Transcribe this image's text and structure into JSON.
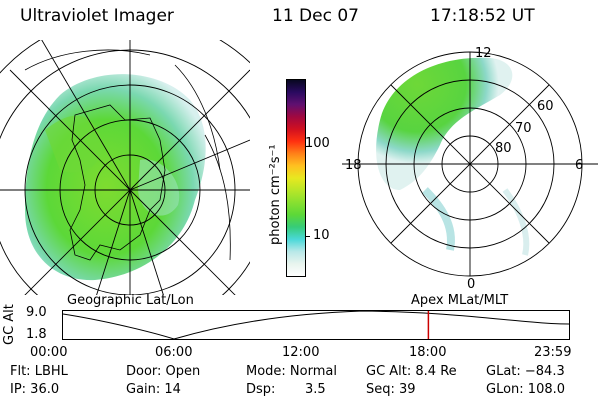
{
  "header": {
    "title": "Ultraviolet Imager",
    "date": "11 Dec 07",
    "time": "17:18:52 UT"
  },
  "left_panel": {
    "label": "Geographic Lat/Lon"
  },
  "right_panel": {
    "label": "Apex MLat/MLT",
    "mlt_labels": {
      "top": "12",
      "left": "18",
      "right": "6",
      "bottom": "0"
    },
    "lat_labels": [
      "60",
      "70",
      "80"
    ]
  },
  "colorbar": {
    "unit_label": "photon cm⁻²s⁻¹",
    "ticks": [
      {
        "label": "100",
        "value": 100
      },
      {
        "label": "10",
        "value": 10
      }
    ],
    "colors": [
      "#ffffff",
      "#e8f4ee",
      "#b8e8e8",
      "#4ad8d8",
      "#36cc78",
      "#5cd838",
      "#88e030",
      "#b8e628",
      "#e8e820",
      "#ffc020",
      "#ff8018",
      "#ff3010",
      "#d01020",
      "#a00840",
      "#601070",
      "#2a0a60",
      "#080820"
    ]
  },
  "altitude_plot": {
    "ylabel": "GC Alt",
    "y_ticks": [
      "9.0",
      "1.8"
    ],
    "y_range": [
      1.8,
      9.0
    ],
    "x_ticks": [
      "00:00",
      "06:00",
      "12:00",
      "18:00",
      "23:59"
    ],
    "current_time_hours": 17.31,
    "current_marker_color": "#cc0000"
  },
  "info": {
    "filter": "Flt: LBHL",
    "ip": "IP: 36.0",
    "door": "Door: Open",
    "gain": "Gain: 14",
    "mode": "Mode: Normal",
    "dsp_label": "Dsp:",
    "dsp_value": "3.5",
    "gc_alt": "GC Alt: 8.4 Re",
    "seq": "Seq: 39",
    "glat": "GLat: −84.3",
    "glon": "GLon: 108.0"
  }
}
